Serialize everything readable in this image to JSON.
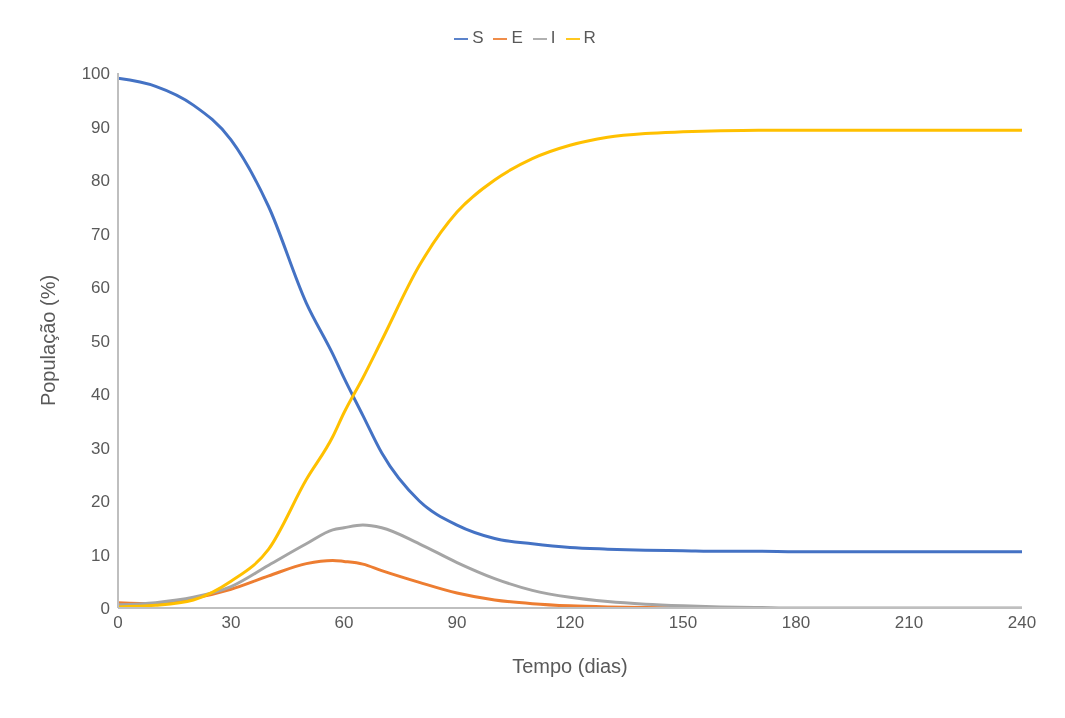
{
  "chart_data": {
    "type": "line",
    "xlabel": "Tempo (dias)",
    "ylabel": "População (%)",
    "x": [
      0,
      10,
      20,
      30,
      40,
      50,
      57,
      60,
      65,
      70,
      80,
      90,
      100,
      110,
      120,
      130,
      140,
      150,
      160,
      170,
      180,
      200,
      210,
      240
    ],
    "series": [
      {
        "name": "S",
        "color": "#4472c4",
        "values": [
          99,
          97.5,
          94,
          87.5,
          75,
          57,
          47.5,
          43,
          36,
          29,
          20,
          15.5,
          13,
          12,
          11.3,
          11,
          10.8,
          10.7,
          10.6,
          10.6,
          10.5,
          10.5,
          10.5,
          10.5
        ]
      },
      {
        "name": "E",
        "color": "#ed7d31",
        "values": [
          1,
          0.8,
          1.8,
          3.5,
          6,
          8.3,
          8.9,
          8.7,
          8.2,
          7,
          4.8,
          2.8,
          1.5,
          0.8,
          0.4,
          0.2,
          0.1,
          0,
          null,
          null,
          null,
          null,
          null,
          null
        ]
      },
      {
        "name": "I",
        "color": "#a5a5a5",
        "values": [
          0.6,
          1,
          2,
          4,
          8,
          12,
          14.6,
          15,
          15.5,
          15,
          12,
          8.5,
          5.5,
          3.3,
          2,
          1.2,
          0.7,
          0.4,
          0.2,
          0.1,
          0,
          0,
          0,
          0
        ]
      },
      {
        "name": "R",
        "color": "#ffc000",
        "values": [
          0.2,
          0.5,
          1.5,
          5,
          11,
          24,
          32,
          36.5,
          43,
          50,
          64,
          74,
          80,
          84,
          86.5,
          88,
          88.7,
          89,
          89.2,
          89.3,
          89.3,
          89.3,
          89.3,
          89.3
        ]
      }
    ],
    "xlim": [
      0,
      240
    ],
    "xticks": [
      0,
      30,
      60,
      90,
      120,
      150,
      180,
      210,
      240
    ],
    "ylim": [
      0,
      100
    ],
    "yticks": [
      0,
      10,
      20,
      30,
      40,
      50,
      60,
      70,
      80,
      90,
      100
    ],
    "grid": false,
    "legend": "top",
    "marker": "none",
    "line_style": "solid"
  }
}
